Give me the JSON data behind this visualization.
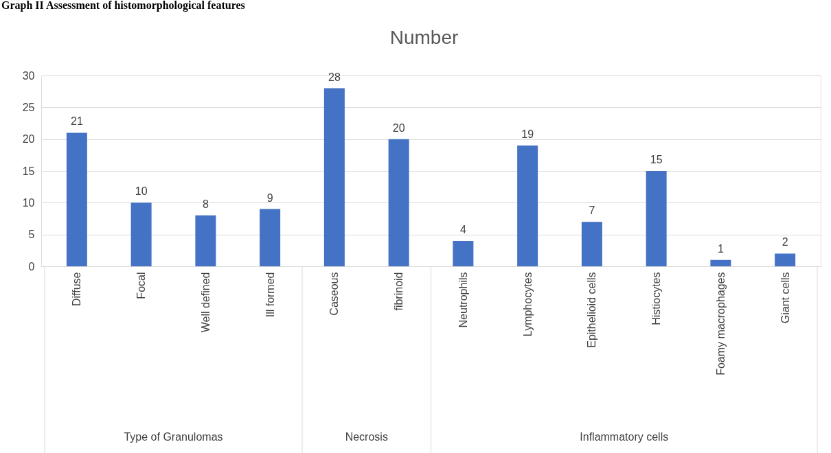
{
  "chart_data": {
    "type": "bar",
    "title": "Graph II Assessment of histomorphological features",
    "subtitle": "Number",
    "categories": [
      "Diffuse",
      "Focal",
      "Well defined",
      "Ill formed",
      "Caseous",
      "fibrinoid",
      "Neutrophils",
      "Lymphocytes",
      "Epithelioid cells",
      "Histiocytes",
      "Foamy macrophages",
      "Giant cells"
    ],
    "values": [
      21,
      10,
      8,
      9,
      28,
      20,
      4,
      19,
      7,
      15,
      1,
      2
    ],
    "color": "#4472c4",
    "ylim": [
      0,
      30
    ],
    "yticks": [
      0,
      5,
      10,
      15,
      20,
      25,
      30
    ],
    "grid": "y",
    "data_labels": true,
    "annotations": [
      "Type of Granulomas",
      "Necrosis",
      "Inflammatory cells"
    ]
  }
}
